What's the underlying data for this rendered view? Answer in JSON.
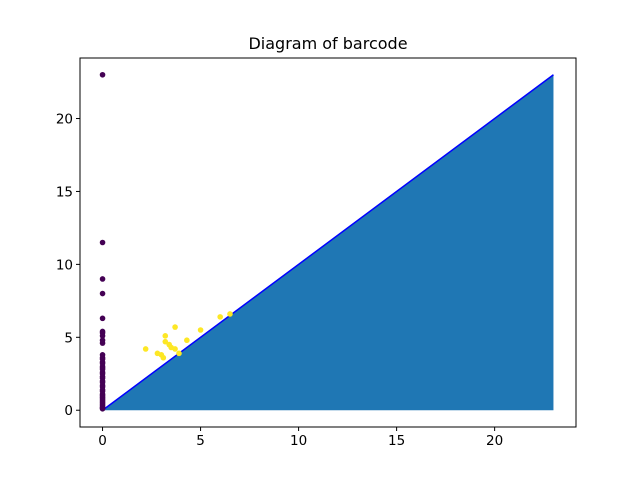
{
  "chart_data": {
    "type": "scatter",
    "title": "Diagram of barcode",
    "xlabel": "",
    "ylabel": "",
    "xlim": [
      -1.15,
      24.15
    ],
    "ylim": [
      -1.15,
      24.15
    ],
    "xticks": [
      0,
      5,
      10,
      15,
      20
    ],
    "yticks": [
      0,
      5,
      10,
      15,
      20
    ],
    "grid": false,
    "legend": "none",
    "diagonal": {
      "from": [
        0,
        0
      ],
      "to": [
        23,
        23
      ],
      "color": "#0000ff",
      "fill_below_color": "#1f77b4"
    },
    "series": [
      {
        "color": "#440154",
        "points": [
          [
            0,
            23.0
          ],
          [
            0,
            11.5
          ],
          [
            0,
            9.0
          ],
          [
            0,
            8.0
          ],
          [
            0,
            6.3
          ],
          [
            0,
            5.4
          ],
          [
            0,
            5.3
          ],
          [
            0,
            5.1
          ],
          [
            0,
            4.8
          ],
          [
            0,
            4.6
          ],
          [
            0,
            3.8
          ],
          [
            0,
            3.6
          ],
          [
            0,
            3.5
          ],
          [
            0,
            3.3
          ],
          [
            0,
            3.2
          ],
          [
            0,
            3.0
          ],
          [
            0,
            2.9
          ],
          [
            0,
            2.8
          ],
          [
            0,
            2.6
          ],
          [
            0,
            2.5
          ],
          [
            0,
            2.3
          ],
          [
            0,
            2.2
          ],
          [
            0,
            2.0
          ],
          [
            0,
            1.9
          ],
          [
            0,
            1.7
          ],
          [
            0,
            1.6
          ],
          [
            0,
            1.4
          ],
          [
            0,
            1.3
          ],
          [
            0,
            1.1
          ],
          [
            0,
            1.0
          ],
          [
            0,
            0.9
          ],
          [
            0,
            0.8
          ],
          [
            0,
            0.7
          ],
          [
            0,
            0.6
          ],
          [
            0,
            0.5
          ],
          [
            0,
            0.4
          ],
          [
            0,
            0.3
          ],
          [
            0,
            0.2
          ],
          [
            0,
            0.15
          ],
          [
            0,
            0.1
          ]
        ]
      },
      {
        "color": "#fde725",
        "points": [
          [
            2.2,
            4.2
          ],
          [
            2.8,
            3.9
          ],
          [
            3.0,
            3.8
          ],
          [
            3.1,
            3.6
          ],
          [
            3.2,
            4.7
          ],
          [
            3.2,
            5.1
          ],
          [
            3.4,
            4.5
          ],
          [
            3.5,
            4.3
          ],
          [
            3.7,
            5.7
          ],
          [
            3.7,
            4.2
          ],
          [
            3.9,
            3.9
          ],
          [
            4.3,
            4.8
          ],
          [
            5.0,
            5.5
          ],
          [
            6.0,
            6.4
          ],
          [
            6.5,
            6.6
          ]
        ]
      }
    ]
  }
}
